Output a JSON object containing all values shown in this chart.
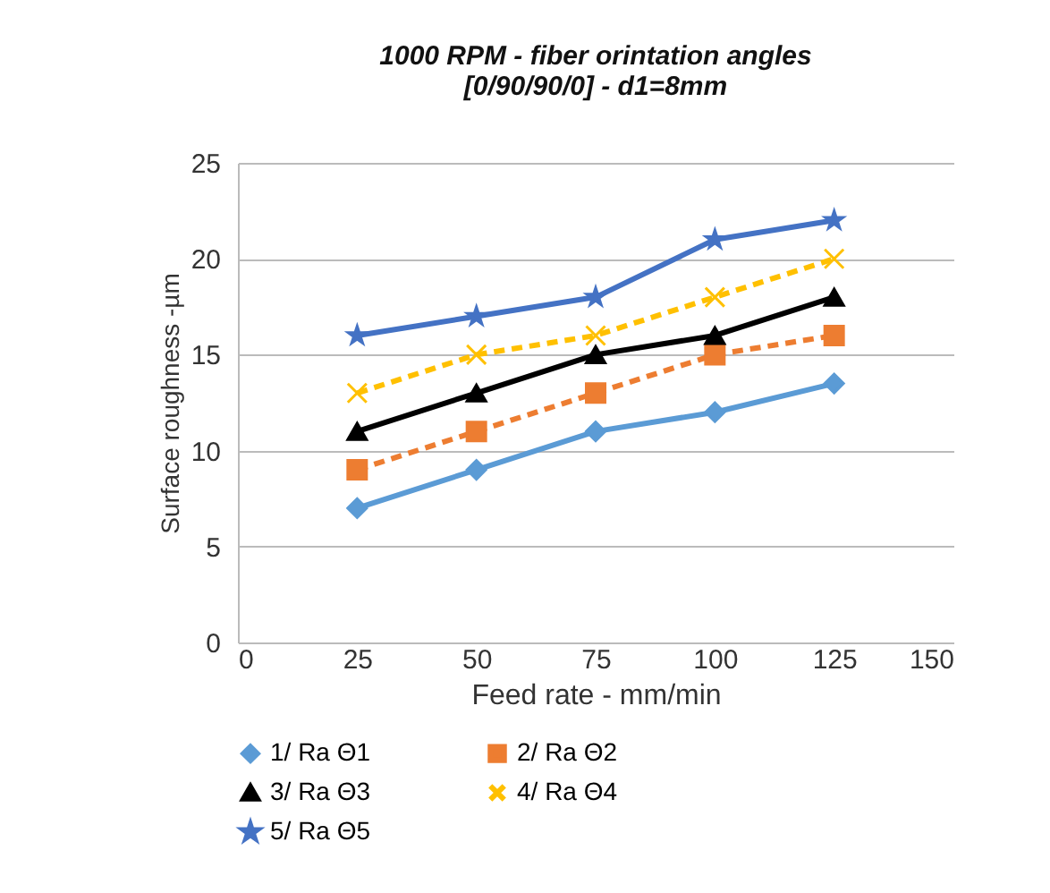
{
  "chart_data": {
    "type": "line",
    "title": [
      "1000 RPM - fiber orintation angles",
      "[0/90/90/0] - d1=8mm"
    ],
    "xlabel": "Feed rate - mm/min",
    "ylabel": "Surface roughness -µm",
    "x": [
      25,
      50,
      75,
      100,
      125
    ],
    "series": [
      {
        "name": "1/ Ra Θ1",
        "color": "#5b9bd5",
        "marker": "diamond",
        "line_style": "solid",
        "values": [
          7,
          9,
          11,
          12,
          13.5
        ]
      },
      {
        "name": "2/ Ra Θ2",
        "color": "#ed7d31",
        "marker": "square",
        "line_style": "dashed",
        "values": [
          9,
          11,
          13,
          15,
          16
        ]
      },
      {
        "name": "3/ Ra Θ3",
        "color": "#000000",
        "marker": "triangle",
        "line_style": "solid",
        "values": [
          11,
          13,
          15,
          16,
          18
        ]
      },
      {
        "name": "4/ Ra Θ4",
        "color": "#ffc000",
        "marker": "cross",
        "line_style": "dashed",
        "values": [
          13,
          15,
          16,
          18,
          20
        ]
      },
      {
        "name": "5/ Ra Θ5",
        "color": "#4472c4",
        "marker": "star",
        "line_style": "solid",
        "values": [
          16,
          17,
          18,
          21,
          22
        ]
      }
    ],
    "xlim": [
      0,
      150
    ],
    "xticks": [
      0,
      25,
      50,
      75,
      100,
      125,
      150
    ],
    "ylim": [
      0,
      25
    ],
    "yticks": [
      0,
      5,
      10,
      15,
      20,
      25
    ],
    "grid": "y",
    "legend": "bottom"
  }
}
